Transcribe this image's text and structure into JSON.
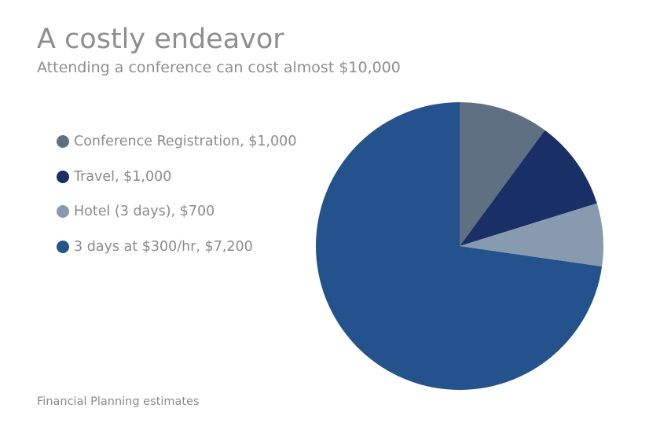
{
  "header": {
    "title": "A costly endeavor",
    "subtitle": "Attending a conference can cost almost $10,000"
  },
  "footer": {
    "source": "Financial Planning estimates"
  },
  "chart_data": {
    "type": "pie",
    "legend_position": "left",
    "slices": [
      {
        "label": "Conference Registration, $1,000",
        "value": 1000,
        "color": "#607083"
      },
      {
        "label": "Travel, $1,000",
        "value": 1000,
        "color": "#183066"
      },
      {
        "label": "Hotel (3 days), $700",
        "value": 700,
        "color": "#889bae"
      },
      {
        "label": "3 days at $300/hr, $7,200",
        "value": 7200,
        "color": "#24528c"
      }
    ]
  }
}
